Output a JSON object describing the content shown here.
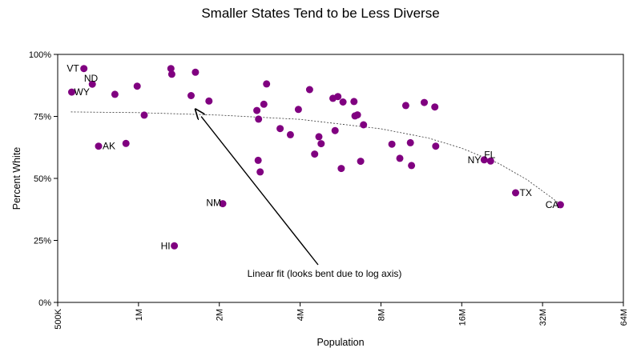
{
  "chart_data": {
    "type": "scatter",
    "title": "Smaller States Tend to be Less Diverse",
    "xlabel": "Population",
    "ylabel": "Percent White",
    "x_scale": "log2",
    "xlim": [
      500000,
      64000000
    ],
    "ylim": [
      0,
      100
    ],
    "x_ticks": [
      {
        "value": 500000,
        "label": "500K"
      },
      {
        "value": 1000000,
        "label": "1M"
      },
      {
        "value": 2000000,
        "label": "2M"
      },
      {
        "value": 4000000,
        "label": "4M"
      },
      {
        "value": 8000000,
        "label": "8M"
      },
      {
        "value": 16000000,
        "label": "16M"
      },
      {
        "value": 32000000,
        "label": "32M"
      },
      {
        "value": 64000000,
        "label": "64M"
      }
    ],
    "y_ticks": [
      {
        "value": 0,
        "label": "0%"
      },
      {
        "value": 25,
        "label": "25%"
      },
      {
        "value": 50,
        "label": "50%"
      },
      {
        "value": 75,
        "label": "75%"
      },
      {
        "value": 100,
        "label": "100%"
      }
    ],
    "grid": false,
    "point_color": "#800080",
    "points": [
      {
        "x": 626000,
        "y": 94.3,
        "label": "VT"
      },
      {
        "x": 673000,
        "y": 88.0,
        "label": "ND"
      },
      {
        "x": 564000,
        "y": 84.8,
        "label": "WY"
      },
      {
        "x": 710000,
        "y": 63.0,
        "label": "AK"
      },
      {
        "x": 1360000,
        "y": 22.8,
        "label": "HI"
      },
      {
        "x": 2060000,
        "y": 39.8,
        "label": "NM"
      },
      {
        "x": 19400000,
        "y": 57.5,
        "label": "NY"
      },
      {
        "x": 20500000,
        "y": 57.0,
        "label": "FL"
      },
      {
        "x": 25400000,
        "y": 44.2,
        "label": "TX"
      },
      {
        "x": 37300000,
        "y": 39.4,
        "label": "CA"
      },
      {
        "x": 817000,
        "y": 83.9,
        "label": ""
      },
      {
        "x": 898000,
        "y": 64.1,
        "label": ""
      },
      {
        "x": 989000,
        "y": 87.2,
        "label": ""
      },
      {
        "x": 1050000,
        "y": 75.5,
        "label": ""
      },
      {
        "x": 1320000,
        "y": 94.3,
        "label": ""
      },
      {
        "x": 1330000,
        "y": 92.0,
        "label": ""
      },
      {
        "x": 1570000,
        "y": 83.4,
        "label": ""
      },
      {
        "x": 1630000,
        "y": 92.8,
        "label": ""
      },
      {
        "x": 1830000,
        "y": 81.2,
        "label": ""
      },
      {
        "x": 2760000,
        "y": 77.4,
        "label": ""
      },
      {
        "x": 2800000,
        "y": 73.9,
        "label": ""
      },
      {
        "x": 2790000,
        "y": 57.3,
        "label": ""
      },
      {
        "x": 2840000,
        "y": 52.6,
        "label": ""
      },
      {
        "x": 2930000,
        "y": 79.9,
        "label": ""
      },
      {
        "x": 3000000,
        "y": 88.1,
        "label": ""
      },
      {
        "x": 3370000,
        "y": 70.1,
        "label": ""
      },
      {
        "x": 3680000,
        "y": 67.6,
        "label": ""
      },
      {
        "x": 3940000,
        "y": 77.8,
        "label": ""
      },
      {
        "x": 4340000,
        "y": 85.8,
        "label": ""
      },
      {
        "x": 4530000,
        "y": 59.8,
        "label": ""
      },
      {
        "x": 4700000,
        "y": 66.8,
        "label": ""
      },
      {
        "x": 4790000,
        "y": 64.0,
        "label": ""
      },
      {
        "x": 5300000,
        "y": 82.3,
        "label": ""
      },
      {
        "x": 5400000,
        "y": 69.3,
        "label": ""
      },
      {
        "x": 5530000,
        "y": 83.0,
        "label": ""
      },
      {
        "x": 5690000,
        "y": 54.0,
        "label": ""
      },
      {
        "x": 5780000,
        "y": 80.8,
        "label": ""
      },
      {
        "x": 6350000,
        "y": 81.0,
        "label": ""
      },
      {
        "x": 6400000,
        "y": 75.2,
        "label": ""
      },
      {
        "x": 6540000,
        "y": 75.6,
        "label": ""
      },
      {
        "x": 6720000,
        "y": 56.9,
        "label": ""
      },
      {
        "x": 6890000,
        "y": 71.6,
        "label": ""
      },
      {
        "x": 8790000,
        "y": 63.8,
        "label": ""
      },
      {
        "x": 9410000,
        "y": 58.1,
        "label": ""
      },
      {
        "x": 9900000,
        "y": 79.4,
        "label": ""
      },
      {
        "x": 10300000,
        "y": 64.4,
        "label": ""
      },
      {
        "x": 10400000,
        "y": 55.2,
        "label": ""
      },
      {
        "x": 11600000,
        "y": 80.6,
        "label": ""
      },
      {
        "x": 12700000,
        "y": 78.8,
        "label": ""
      },
      {
        "x": 12800000,
        "y": 63.0,
        "label": ""
      }
    ],
    "fit_line": {
      "label": "Linear fit (looks bent due to log axis)",
      "points": [
        {
          "x": 560000,
          "y": 76.8
        },
        {
          "x": 1000000,
          "y": 76.5
        },
        {
          "x": 2000000,
          "y": 75.5
        },
        {
          "x": 4000000,
          "y": 73.8
        },
        {
          "x": 8000000,
          "y": 70.0
        },
        {
          "x": 12000000,
          "y": 66.3
        },
        {
          "x": 16000000,
          "y": 62.2
        },
        {
          "x": 22000000,
          "y": 56.0
        },
        {
          "x": 28000000,
          "y": 49.5
        },
        {
          "x": 35000000,
          "y": 41.8
        },
        {
          "x": 37300000,
          "y": 39.5
        }
      ],
      "arrow_target": {
        "x": 1700000,
        "y": 75.6
      }
    }
  }
}
